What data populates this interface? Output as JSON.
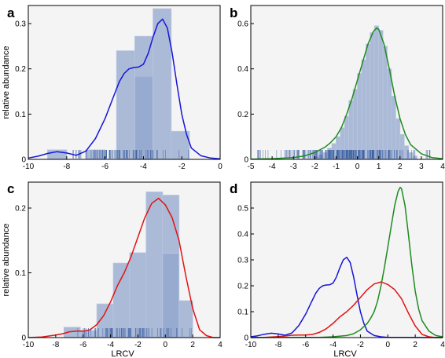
{
  "chart_data": [
    {
      "type": "histogram",
      "panel": "a",
      "ylabel": "relative abundance",
      "xlabel": "",
      "xlim": [
        -10,
        0
      ],
      "ylim": [
        0,
        0.34
      ],
      "xticks": [
        -10,
        -8,
        -6,
        -4,
        -2,
        0
      ],
      "yticks": [
        0,
        0.1,
        0.2,
        0.3
      ],
      "bars": [
        {
          "x0": -9.0,
          "x1": -8.0,
          "y": 0.021
        },
        {
          "x0": -8.0,
          "x1": -7.0,
          "y": 0.0
        },
        {
          "x0": -7.0,
          "x1": -6.0,
          "y": 0.021
        },
        {
          "x0": -5.4,
          "x1": -4.45,
          "y": 0.24
        },
        {
          "x0": -4.45,
          "x1": -3.5,
          "y": 0.182
        },
        {
          "x0": -4.45,
          "x1": -3.5,
          "y": 0.272
        },
        {
          "x0": -3.5,
          "x1": -2.55,
          "y": 0.333
        },
        {
          "x0": -2.55,
          "x1": -1.6,
          "y": 0.062
        }
      ],
      "rug_range": [
        -8.7,
        -1.55
      ],
      "density": [
        {
          "name": "",
          "color": "#1515d8",
          "x": [
            -10,
            -9.5,
            -9,
            -8.5,
            -8,
            -7.5,
            -7,
            -6.5,
            -6,
            -5.5,
            -5.25,
            -5,
            -4.75,
            -4.5,
            -4.25,
            -4,
            -3.75,
            -3.5,
            -3.25,
            -3,
            -2.75,
            -2.5,
            -2.25,
            -2,
            -1.75,
            -1.5,
            -1,
            -0.5,
            0
          ],
          "y": [
            0.003,
            0.007,
            0.013,
            0.017,
            0.014,
            0.009,
            0.018,
            0.046,
            0.09,
            0.145,
            0.172,
            0.19,
            0.2,
            0.203,
            0.204,
            0.21,
            0.234,
            0.27,
            0.3,
            0.31,
            0.29,
            0.235,
            0.165,
            0.1,
            0.055,
            0.025,
            0.008,
            0.003,
            0.001
          ]
        }
      ]
    },
    {
      "type": "histogram",
      "panel": "b",
      "ylabel": "",
      "xlabel": "",
      "xlim": [
        -5,
        4
      ],
      "ylim": [
        0,
        0.68
      ],
      "xticks": [
        -5,
        -4,
        -3,
        -2,
        -1,
        0,
        1,
        2,
        3,
        4
      ],
      "yticks": [
        0,
        0.2,
        0.4,
        0.6
      ],
      "bars": [
        {
          "x0": -2.0,
          "x1": -1.8,
          "y": 0.01
        },
        {
          "x0": -1.8,
          "x1": -1.6,
          "y": 0.02
        },
        {
          "x0": -1.6,
          "x1": -1.4,
          "y": 0.03
        },
        {
          "x0": -1.4,
          "x1": -1.2,
          "y": 0.05
        },
        {
          "x0": -1.2,
          "x1": -1.0,
          "y": 0.07
        },
        {
          "x0": -1.0,
          "x1": -0.8,
          "y": 0.1
        },
        {
          "x0": -0.8,
          "x1": -0.6,
          "y": 0.14
        },
        {
          "x0": -0.6,
          "x1": -0.4,
          "y": 0.19
        },
        {
          "x0": -0.4,
          "x1": -0.2,
          "y": 0.26
        },
        {
          "x0": -0.2,
          "x1": 0.0,
          "y": 0.31
        },
        {
          "x0": 0.0,
          "x1": 0.2,
          "y": 0.38
        },
        {
          "x0": 0.2,
          "x1": 0.4,
          "y": 0.44
        },
        {
          "x0": 0.4,
          "x1": 0.6,
          "y": 0.51
        },
        {
          "x0": 0.6,
          "x1": 0.8,
          "y": 0.56
        },
        {
          "x0": 0.8,
          "x1": 1.0,
          "y": 0.59
        },
        {
          "x0": 1.0,
          "x1": 1.2,
          "y": 0.57
        },
        {
          "x0": 1.2,
          "x1": 1.4,
          "y": 0.5
        },
        {
          "x0": 1.4,
          "x1": 1.6,
          "y": 0.4
        },
        {
          "x0": 1.6,
          "x1": 1.8,
          "y": 0.28
        },
        {
          "x0": 1.8,
          "x1": 2.0,
          "y": 0.18
        },
        {
          "x0": 2.0,
          "x1": 2.2,
          "y": 0.11
        },
        {
          "x0": 2.2,
          "x1": 2.4,
          "y": 0.06
        },
        {
          "x0": 2.4,
          "x1": 2.6,
          "y": 0.03
        },
        {
          "x0": 2.6,
          "x1": 2.8,
          "y": 0.015
        }
      ],
      "rug_range": [
        -4.7,
        3.6
      ],
      "density": [
        {
          "name": "",
          "color": "#1f8a1f",
          "x": [
            -5,
            -4,
            -3,
            -2.5,
            -2,
            -1.5,
            -1.25,
            -1,
            -0.75,
            -0.5,
            -0.25,
            0,
            0.25,
            0.5,
            0.75,
            0.9,
            1,
            1.25,
            1.5,
            1.75,
            2,
            2.25,
            2.5,
            3,
            3.5,
            4
          ],
          "y": [
            0.001,
            0.003,
            0.008,
            0.015,
            0.03,
            0.055,
            0.075,
            0.1,
            0.14,
            0.2,
            0.27,
            0.35,
            0.43,
            0.51,
            0.565,
            0.58,
            0.575,
            0.51,
            0.4,
            0.28,
            0.18,
            0.11,
            0.065,
            0.025,
            0.008,
            0.003
          ]
        }
      ]
    },
    {
      "type": "histogram",
      "panel": "c",
      "ylabel": "relative abundance",
      "xlabel": "LRCV",
      "xlim": [
        -10,
        4
      ],
      "ylim": [
        0,
        0.24
      ],
      "xticks": [
        -10,
        -8,
        -6,
        -4,
        -2,
        0,
        2,
        4
      ],
      "yticks": [
        0,
        0.1,
        0.2
      ],
      "bars": [
        {
          "x0": -7.4,
          "x1": -6.2,
          "y": 0.016
        },
        {
          "x0": -6.2,
          "x1": -5.0,
          "y": 0.011
        },
        {
          "x0": -5.0,
          "x1": -3.8,
          "y": 0.052
        },
        {
          "x0": -3.8,
          "x1": -2.6,
          "y": 0.115
        },
        {
          "x0": -2.6,
          "x1": -1.4,
          "y": 0.131
        },
        {
          "x0": -1.4,
          "x1": -0.2,
          "y": 0.225
        },
        {
          "x0": -0.2,
          "x1": 1.0,
          "y": 0.22
        },
        {
          "x0": -0.2,
          "x1": 1.0,
          "y": 0.13
        },
        {
          "x0": 1.0,
          "x1": 2.0,
          "y": 0.057
        }
      ],
      "rug_range": [
        -7.1,
        2.0
      ],
      "density": [
        {
          "name": "",
          "color": "#e01414",
          "x": [
            -10,
            -9,
            -8,
            -7.5,
            -7,
            -6.5,
            -6,
            -5.5,
            -5,
            -4.5,
            -4,
            -3.5,
            -3,
            -2.5,
            -2,
            -1.5,
            -1,
            -0.5,
            0,
            0.5,
            1,
            1.5,
            2,
            2.5,
            3,
            3.5,
            4
          ],
          "y": [
            0.0,
            0.001,
            0.004,
            0.006,
            0.009,
            0.01,
            0.01,
            0.012,
            0.02,
            0.034,
            0.055,
            0.08,
            0.1,
            0.125,
            0.155,
            0.185,
            0.207,
            0.215,
            0.205,
            0.185,
            0.15,
            0.095,
            0.045,
            0.012,
            0.003,
            0.0,
            0.0
          ]
        }
      ]
    },
    {
      "type": "line",
      "panel": "d",
      "ylabel": "",
      "xlabel": "LRCV",
      "xlim": [
        -10,
        4
      ],
      "ylim": [
        0,
        0.6
      ],
      "xticks": [
        -10,
        -8,
        -6,
        -4,
        -2,
        0,
        2,
        4
      ],
      "yticks": [
        0,
        0.1,
        0.2,
        0.3,
        0.4,
        0.5
      ],
      "bars": [],
      "density": [
        {
          "name": "",
          "color": "#1515d8",
          "x": [
            -10,
            -9.5,
            -9,
            -8.5,
            -8,
            -7.5,
            -7,
            -6.5,
            -6,
            -5.5,
            -5.25,
            -5,
            -4.75,
            -4.5,
            -4.25,
            -4,
            -3.75,
            -3.5,
            -3.25,
            -3,
            -2.75,
            -2.5,
            -2.25,
            -2,
            -1.75,
            -1.5,
            -1,
            -0.5,
            0,
            4
          ],
          "y": [
            0.003,
            0.007,
            0.013,
            0.017,
            0.014,
            0.009,
            0.018,
            0.046,
            0.09,
            0.145,
            0.172,
            0.19,
            0.2,
            0.203,
            0.204,
            0.21,
            0.234,
            0.27,
            0.3,
            0.31,
            0.29,
            0.235,
            0.165,
            0.1,
            0.055,
            0.025,
            0.008,
            0.003,
            0.001,
            0.0
          ]
        },
        {
          "name": "",
          "color": "#e01414",
          "x": [
            -10,
            -9,
            -8,
            -7.5,
            -7,
            -6.5,
            -6,
            -5.5,
            -5,
            -4.5,
            -4,
            -3.5,
            -3,
            -2.5,
            -2,
            -1.5,
            -1,
            -0.5,
            0,
            0.5,
            1,
            1.5,
            2,
            2.5,
            3,
            3.5,
            4
          ],
          "y": [
            0.0,
            0.001,
            0.004,
            0.006,
            0.009,
            0.01,
            0.01,
            0.012,
            0.02,
            0.034,
            0.055,
            0.08,
            0.1,
            0.125,
            0.155,
            0.185,
            0.207,
            0.215,
            0.205,
            0.185,
            0.15,
            0.095,
            0.045,
            0.012,
            0.003,
            0.0,
            0.0
          ]
        },
        {
          "name": "",
          "color": "#1f8a1f",
          "x": [
            -10,
            -5,
            -4,
            -3,
            -2.5,
            -2,
            -1.5,
            -1.25,
            -1,
            -0.75,
            -0.5,
            -0.25,
            0,
            0.25,
            0.5,
            0.75,
            0.9,
            1,
            1.25,
            1.5,
            1.75,
            2,
            2.25,
            2.5,
            3,
            3.5,
            4
          ],
          "y": [
            0.0,
            0.001,
            0.003,
            0.008,
            0.015,
            0.03,
            0.055,
            0.075,
            0.1,
            0.14,
            0.2,
            0.27,
            0.35,
            0.43,
            0.51,
            0.565,
            0.58,
            0.575,
            0.51,
            0.4,
            0.28,
            0.18,
            0.11,
            0.065,
            0.025,
            0.008,
            0.003
          ]
        }
      ]
    }
  ],
  "colors": {
    "panel_background": "#f4f4f5",
    "bar_fill": "#8fa3cc",
    "bar_edge": "#b9c6e0",
    "rug": "#3a5da0",
    "blue_curve": "#1515d8",
    "green_curve": "#1f8a1f",
    "red_curve": "#e01414"
  }
}
